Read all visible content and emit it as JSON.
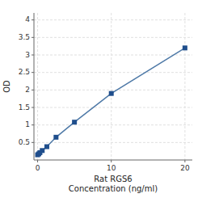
{
  "chart_data": {
    "type": "line",
    "x": [
      0,
      0.156,
      0.313,
      0.625,
      1.25,
      2.5,
      5,
      10,
      20
    ],
    "values": [
      0.148,
      0.175,
      0.21,
      0.27,
      0.38,
      0.65,
      1.08,
      1.9,
      3.2
    ],
    "marker": "square",
    "xlabel": "Rat RGS6\nConcentration (ng/ml)",
    "ylabel": "OD",
    "xlim": [
      -0.5,
      21
    ],
    "ylim": [
      0,
      4.2
    ],
    "xticks": [
      0,
      10,
      20
    ],
    "yticks": [
      0.5,
      1,
      1.5,
      2,
      2.5,
      3,
      3.5,
      4
    ],
    "grid": true
  }
}
